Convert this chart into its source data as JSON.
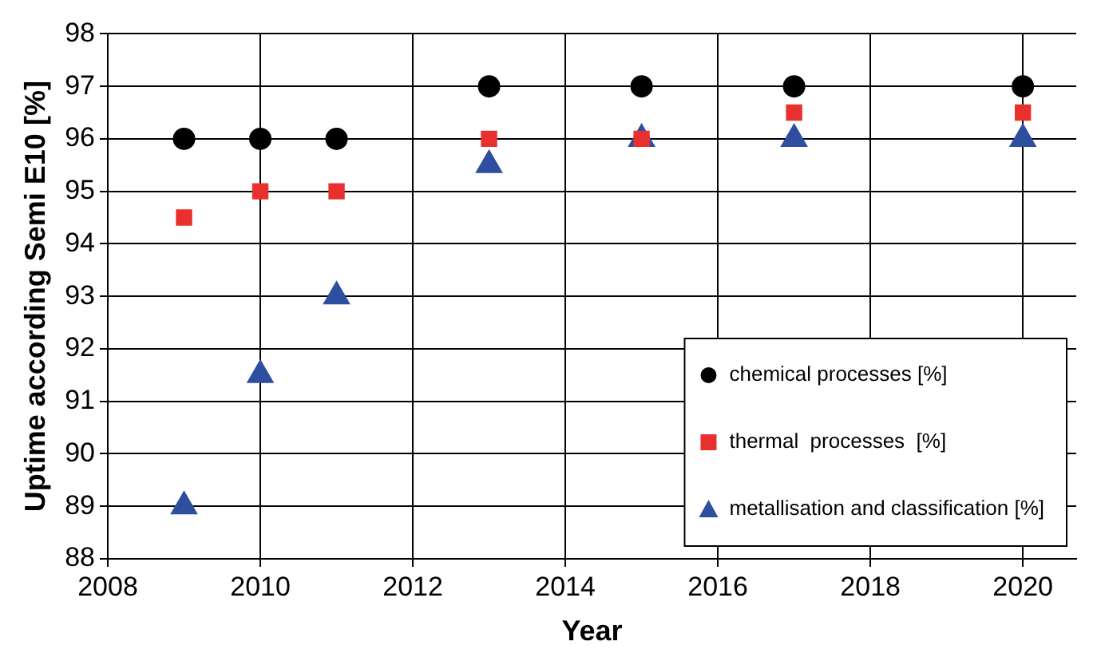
{
  "chart_data": {
    "type": "scatter",
    "xlabel": "Year",
    "ylabel": "Uptime according Semi E10 [%]",
    "x": [
      2009,
      2010,
      2011,
      2013,
      2015,
      2017,
      2020
    ],
    "series": [
      {
        "name": "chemical processes [%]",
        "color": "#000000",
        "marker": "circle",
        "values": [
          96,
          96,
          96,
          97,
          97,
          97,
          97
        ]
      },
      {
        "name": "thermal  processes  [%]",
        "color": "#e8312f",
        "marker": "square",
        "values": [
          94.5,
          95,
          95,
          96,
          96,
          96.5,
          96.5
        ]
      },
      {
        "name": "metallisation and classification [%]",
        "color": "#2e4ea0",
        "marker": "triangle",
        "values": [
          89,
          91.5,
          93,
          95.5,
          96,
          96,
          96
        ]
      }
    ],
    "xlim": [
      2008,
      2020.7
    ],
    "xticks": [
      2008,
      2010,
      2012,
      2014,
      2016,
      2018,
      2020
    ],
    "ylim": [
      88,
      98
    ],
    "yticks": [
      88,
      89,
      90,
      91,
      92,
      93,
      94,
      95,
      96,
      97,
      98
    ],
    "grid": true,
    "legend": "bottom right"
  }
}
